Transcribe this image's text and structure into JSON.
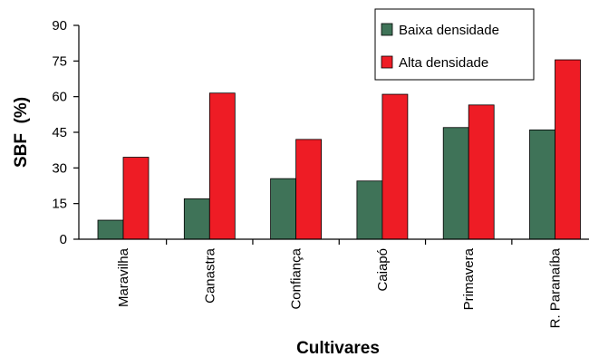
{
  "chart_data": {
    "type": "bar",
    "title": "",
    "xlabel": "Cultivares",
    "ylabel": "SBF  (%)",
    "categories": [
      "Maravilha",
      "Canastra",
      "Confiança",
      "Caiapó",
      "Primavera",
      "R. Paranaíba"
    ],
    "series": [
      {
        "name": "Baixa densidade",
        "color": "#3f7358",
        "values": [
          8,
          17,
          25.5,
          24.5,
          47,
          46
        ]
      },
      {
        "name": "Alta densidade",
        "color": "#ee1c25",
        "values": [
          34.5,
          61.5,
          42,
          61,
          56.5,
          75.5
        ]
      }
    ],
    "ylim": [
      0,
      90
    ],
    "yticks": [
      0,
      15,
      30,
      45,
      60,
      75,
      90
    ],
    "grid": false,
    "legend_position": "top-right"
  }
}
